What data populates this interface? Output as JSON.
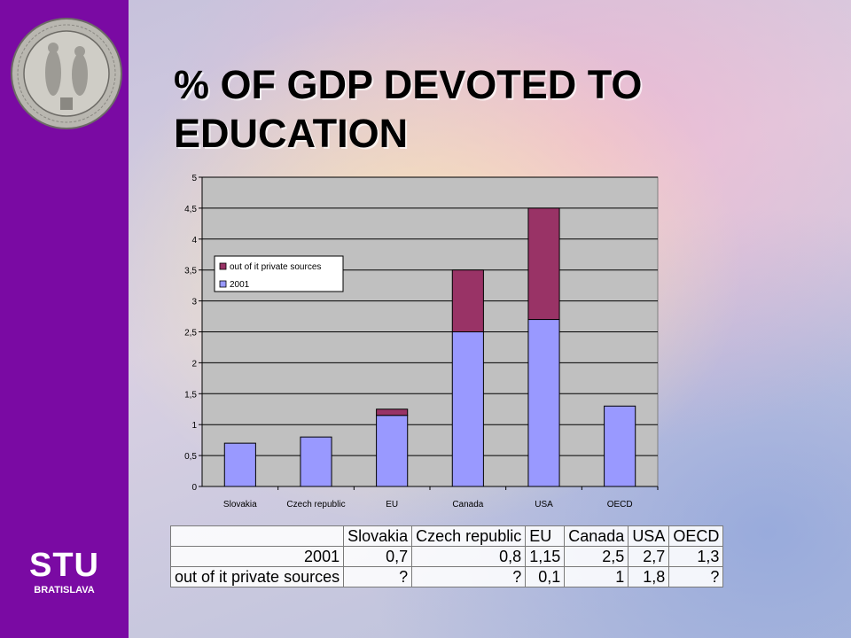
{
  "slide": {
    "title": "% OF GDP DEVOTED TO EDUCATION",
    "logo_main": "STU",
    "logo_sub": "BRATISLAVA",
    "seal_icon": "university-seal",
    "colors": {
      "sidebar": "#7a0aa3",
      "series_2001": "#9999ff",
      "series_private": "#993366",
      "plot_bg": "#c0c0c0"
    }
  },
  "chart_data": {
    "type": "bar",
    "stacked": true,
    "categories": [
      "Slovakia",
      "Czech republic",
      "EU",
      "Canada",
      "USA",
      "OECD"
    ],
    "series": [
      {
        "name": "2001",
        "values": [
          0.7,
          0.8,
          1.15,
          2.5,
          2.7,
          1.3
        ],
        "color": "#9999ff"
      },
      {
        "name": "out of it private sources",
        "values": [
          0,
          0,
          0.1,
          1,
          1.8,
          0
        ],
        "color": "#993366"
      }
    ],
    "yticks": [
      "0",
      "0,5",
      "1",
      "1,5",
      "2",
      "2,5",
      "3",
      "3,5",
      "4",
      "4,5",
      "5"
    ],
    "ylim": [
      0,
      5
    ],
    "grid": true,
    "legend_position": "upper-left",
    "legend": [
      "out of it private sources",
      "2001"
    ]
  },
  "table": {
    "header": [
      "",
      "Slovakia",
      "Czech republic",
      "EU",
      "Canada",
      "USA",
      "OECD"
    ],
    "rows": [
      [
        "2001",
        "0,7",
        "0,8",
        "1,15",
        "2,5",
        "2,7",
        "1,3"
      ],
      [
        "out of it private sources",
        "?",
        "?",
        "0,1",
        "1",
        "1,8",
        "?"
      ]
    ]
  }
}
